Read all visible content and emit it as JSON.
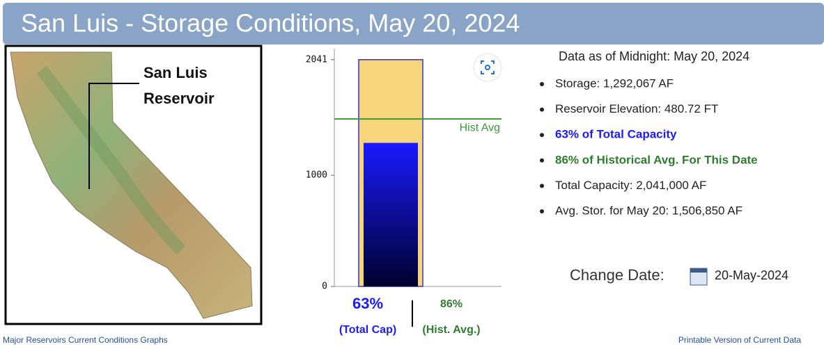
{
  "header": {
    "title": "San Luis - Storage Conditions, May 20, 2024"
  },
  "map": {
    "label_lines": [
      "San Luis",
      "Reservoir"
    ]
  },
  "chart_data": {
    "type": "bar",
    "ylim": [
      0,
      2140
    ],
    "yticks": [
      0,
      1000,
      2041
    ],
    "bars": [
      {
        "value": 2041,
        "fill": "#f7d57a",
        "stroke": "#3333cc"
      },
      {
        "value": 1292,
        "gradient": [
          "#1a1aff",
          "#00002e"
        ]
      }
    ],
    "reference_line": {
      "value": 1507,
      "label": "Hist Avg",
      "color": "#3a9a3a"
    },
    "percent_labels": [
      {
        "value": 63,
        "label": "63%",
        "caption": "(Total Cap)",
        "color": "#1a1aff"
      },
      {
        "value": 86,
        "label": "86%",
        "caption": "(Hist. Avg.)",
        "color": "#2e7d2e"
      }
    ]
  },
  "info": {
    "as_of": "Data as of Midnight: May 20, 2024",
    "items": [
      {
        "text": "Storage: 1,292,067 AF",
        "color": "#222222"
      },
      {
        "text": "Reservoir Elevation: 480.72 FT",
        "color": "#222222"
      },
      {
        "text": "63% of Total Capacity",
        "color": "#1a1aff"
      },
      {
        "text": "86% of Historical Avg. For This Date",
        "color": "#2e7d2e"
      },
      {
        "text": "Total Capacity: 2,041,000 AF",
        "color": "#222222"
      },
      {
        "text": "Avg. Stor. for May 20: 1,506,850 AF",
        "color": "#222222"
      }
    ]
  },
  "change_date": {
    "label": "Change Date:",
    "value": "20-May-2024"
  },
  "footer": {
    "left": "Major Reservoirs Current Conditions Graphs",
    "right": "Printable Version of Current Data"
  }
}
